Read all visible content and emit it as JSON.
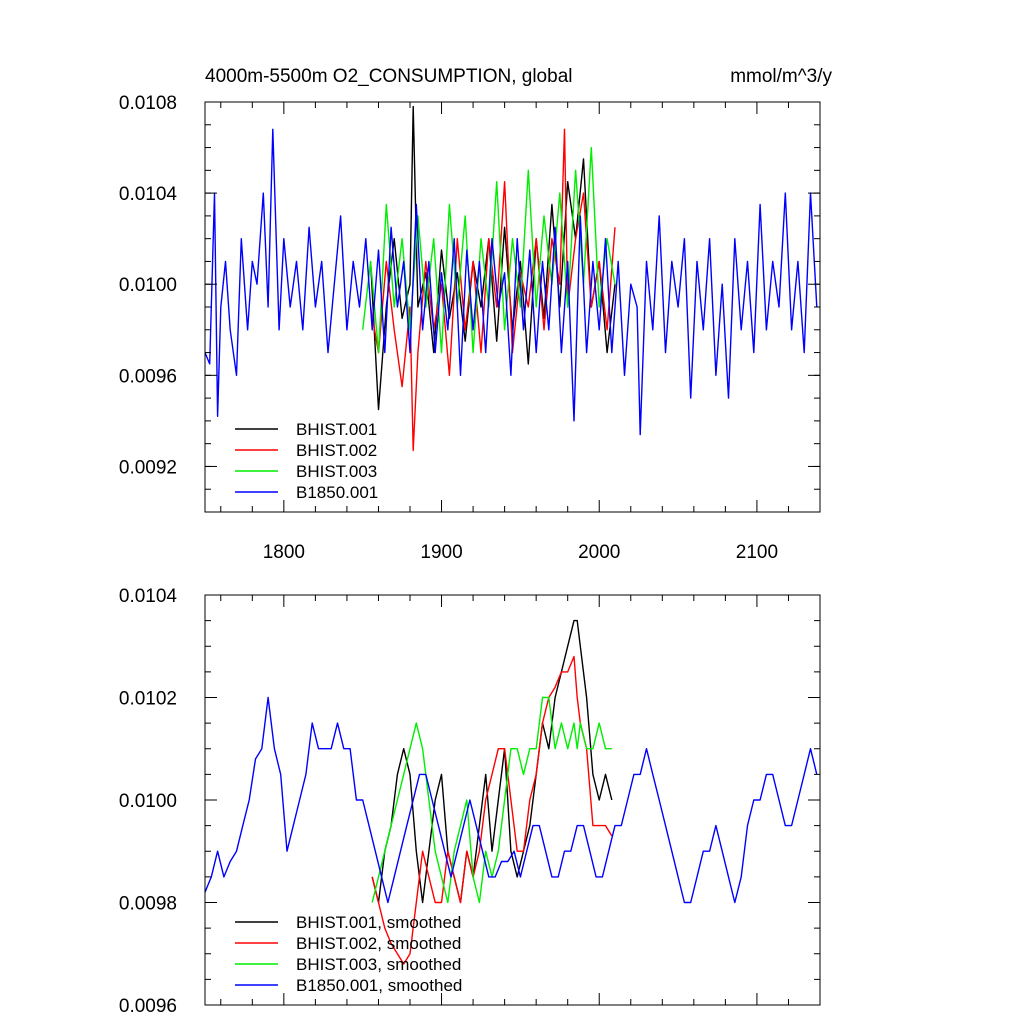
{
  "chart_data": [
    {
      "type": "line",
      "title": "4000m-5500m O2_CONSUMPTION, global",
      "units": "mmol/m^3/y",
      "xlim": [
        1750,
        2140
      ],
      "ylim": [
        0.009,
        0.0108
      ],
      "x_ticks": [
        {
          "value": 1800,
          "label": "1800"
        },
        {
          "value": 1900,
          "label": "1900"
        },
        {
          "value": 2000,
          "label": "2000"
        },
        {
          "value": 2100,
          "label": "2100"
        }
      ],
      "y_ticks": [
        {
          "value": 0.0092,
          "label": "0.0092"
        },
        {
          "value": 0.0096,
          "label": "0.0096"
        },
        {
          "value": 0.01,
          "label": "0.0100"
        },
        {
          "value": 0.0104,
          "label": "0.0104"
        },
        {
          "value": 0.0108,
          "label": "0.0108"
        }
      ],
      "legend_position": "bottom-left",
      "series": [
        {
          "name": "BHIST.001",
          "color": "#000000",
          "x": [
            1855,
            1860,
            1865,
            1870,
            1875,
            1880,
            1882,
            1885,
            1890,
            1895,
            1900,
            1905,
            1910,
            1915,
            1920,
            1925,
            1930,
            1935,
            1940,
            1945,
            1950,
            1955,
            1960,
            1965,
            1970,
            1975,
            1980,
            1985,
            1990,
            1995,
            2000,
            2005,
            2010
          ],
          "y": [
            0.0101,
            0.00945,
            0.0099,
            0.0102,
            0.00985,
            0.01,
            0.01078,
            0.0099,
            0.01005,
            0.0097,
            0.01015,
            0.00985,
            0.01005,
            0.00975,
            0.0101,
            0.0099,
            0.0102,
            0.00975,
            0.01025,
            0.0098,
            0.0101,
            0.00965,
            0.0102,
            0.00985,
            0.01035,
            0.0099,
            0.01045,
            0.0102,
            0.01055,
            0.0099,
            0.0101,
            0.0097,
            0.01
          ]
        },
        {
          "name": "BHIST.002",
          "color": "#ff0000",
          "x": [
            1855,
            1860,
            1865,
            1870,
            1875,
            1880,
            1882,
            1885,
            1890,
            1895,
            1900,
            1905,
            1910,
            1915,
            1920,
            1925,
            1930,
            1935,
            1940,
            1945,
            1950,
            1955,
            1960,
            1965,
            1970,
            1975,
            1978,
            1980,
            1985,
            1990,
            1995,
            2000,
            2005,
            2010
          ],
          "y": [
            0.0099,
            0.0097,
            0.0101,
            0.0098,
            0.00955,
            0.0099,
            0.00927,
            0.0097,
            0.0101,
            0.0098,
            0.01,
            0.0096,
            0.0102,
            0.0098,
            0.0101,
            0.0097,
            0.0102,
            0.0099,
            0.01045,
            0.0097,
            0.01005,
            0.0099,
            0.0102,
            0.0098,
            0.0102,
            0.01,
            0.01068,
            0.0099,
            0.0102,
            0.0104,
            0.0099,
            0.0101,
            0.0098,
            0.01025
          ]
        },
        {
          "name": "BHIST.003",
          "color": "#00ee00",
          "x": [
            1850,
            1855,
            1860,
            1865,
            1870,
            1875,
            1880,
            1885,
            1890,
            1895,
            1900,
            1905,
            1910,
            1915,
            1920,
            1925,
            1930,
            1935,
            1940,
            1945,
            1950,
            1955,
            1960,
            1965,
            1970,
            1975,
            1980,
            1985,
            1990,
            1995,
            2000,
            2005,
            2010
          ],
          "y": [
            0.0098,
            0.0101,
            0.0097,
            0.01035,
            0.0099,
            0.0102,
            0.0098,
            0.0103,
            0.0099,
            0.0102,
            0.0097,
            0.01035,
            0.0099,
            0.0103,
            0.0097,
            0.0102,
            0.0099,
            0.01045,
            0.0098,
            0.0102,
            0.0099,
            0.0105,
            0.0099,
            0.0103,
            0.01,
            0.0104,
            0.0099,
            0.0105,
            0.01,
            0.0106,
            0.0099,
            0.0102,
            0.01
          ]
        },
        {
          "name": "B1850.001",
          "color": "#0000ff",
          "x": [
            1750,
            1753,
            1756,
            1758,
            1760,
            1763,
            1766,
            1770,
            1773,
            1777,
            1780,
            1783,
            1787,
            1790,
            1793,
            1797,
            1800,
            1804,
            1808,
            1812,
            1816,
            1820,
            1824,
            1828,
            1832,
            1836,
            1840,
            1844,
            1848,
            1852,
            1856,
            1860,
            1864,
            1868,
            1872,
            1876,
            1880,
            1884,
            1888,
            1892,
            1896,
            1900,
            1904,
            1908,
            1912,
            1916,
            1920,
            1924,
            1928,
            1932,
            1936,
            1940,
            1944,
            1948,
            1952,
            1956,
            1960,
            1964,
            1968,
            1972,
            1976,
            1980,
            1984,
            1988,
            1992,
            1996,
            2000,
            2004,
            2008,
            2012,
            2016,
            2020,
            2024,
            2026,
            2030,
            2034,
            2038,
            2042,
            2046,
            2050,
            2054,
            2058,
            2062,
            2066,
            2070,
            2074,
            2078,
            2082,
            2086,
            2090,
            2094,
            2098,
            2102,
            2106,
            2110,
            2114,
            2118,
            2122,
            2126,
            2130,
            2134,
            2138
          ],
          "y": [
            0.0097,
            0.00965,
            0.0104,
            0.00942,
            0.0099,
            0.0101,
            0.0098,
            0.0096,
            0.0102,
            0.0098,
            0.0101,
            0.01,
            0.0104,
            0.0099,
            0.01068,
            0.0098,
            0.0102,
            0.0099,
            0.0101,
            0.0098,
            0.01025,
            0.0099,
            0.0101,
            0.0097,
            0.01,
            0.0103,
            0.0098,
            0.0101,
            0.0099,
            0.0102,
            0.0098,
            0.01015,
            0.0097,
            0.01025,
            0.0099,
            0.0101,
            0.0097,
            0.01035,
            0.0098,
            0.0101,
            0.0097,
            0.01005,
            0.0098,
            0.0102,
            0.0096,
            0.01015,
            0.0098,
            0.0101,
            0.0097,
            0.0102,
            0.0099,
            0.01005,
            0.0096,
            0.0102,
            0.0098,
            0.01015,
            0.0097,
            0.0101,
            0.0098,
            0.01025,
            0.0097,
            0.0101,
            0.0094,
            0.0103,
            0.0097,
            0.0101,
            0.0098,
            0.0102,
            0.0097,
            0.0101,
            0.0096,
            0.01,
            0.0099,
            0.00934,
            0.0101,
            0.0098,
            0.0103,
            0.0097,
            0.0101,
            0.0099,
            0.0102,
            0.0095,
            0.0101,
            0.0098,
            0.0102,
            0.0096,
            0.01,
            0.0095,
            0.0102,
            0.0098,
            0.0101,
            0.0097,
            0.01035,
            0.0098,
            0.0101,
            0.0099,
            0.0104,
            0.0098,
            0.0101,
            0.0097,
            0.0104,
            0.0099
          ]
        }
      ]
    },
    {
      "type": "line",
      "title": "",
      "xlim": [
        1750,
        2140
      ],
      "ylim": [
        0.0096,
        0.0104
      ],
      "x_ticks": [
        {
          "value": 1800,
          "label": ""
        },
        {
          "value": 1900,
          "label": ""
        },
        {
          "value": 2000,
          "label": ""
        },
        {
          "value": 2100,
          "label": ""
        }
      ],
      "y_ticks": [
        {
          "value": 0.0096,
          "label": "0.0096"
        },
        {
          "value": 0.0098,
          "label": "0.0098"
        },
        {
          "value": 0.01,
          "label": "0.0100"
        },
        {
          "value": 0.0102,
          "label": "0.0102"
        },
        {
          "value": 0.0104,
          "label": "0.0104"
        }
      ],
      "legend_position": "bottom-left",
      "series": [
        {
          "name": "BHIST.001, smoothed",
          "color": "#000000",
          "x": [
            1856,
            1860,
            1864,
            1868,
            1872,
            1876,
            1880,
            1884,
            1888,
            1892,
            1896,
            1900,
            1904,
            1908,
            1912,
            1916,
            1920,
            1924,
            1928,
            1932,
            1936,
            1940,
            1944,
            1948,
            1952,
            1956,
            1960,
            1964,
            1968,
            1972,
            1976,
            1980,
            1984,
            1986,
            1988,
            1992,
            1996,
            2000,
            2004,
            2008
          ],
          "y": [
            0.00985,
            0.0098,
            0.0099,
            0.00995,
            0.01005,
            0.0101,
            0.01005,
            0.0099,
            0.0098,
            0.0099,
            0.01,
            0.01005,
            0.0099,
            0.00985,
            0.0098,
            0.0099,
            0.00985,
            0.00995,
            0.01005,
            0.0099,
            0.01,
            0.0101,
            0.0099,
            0.00985,
            0.0099,
            0.00995,
            0.01005,
            0.01015,
            0.0101,
            0.0102,
            0.01025,
            0.0103,
            0.01035,
            0.01035,
            0.0103,
            0.0102,
            0.01005,
            0.01,
            0.01005,
            0.01
          ]
        },
        {
          "name": "BHIST.002, smoothed",
          "color": "#ff0000",
          "x": [
            1856,
            1860,
            1864,
            1868,
            1872,
            1876,
            1880,
            1884,
            1888,
            1892,
            1896,
            1900,
            1904,
            1908,
            1912,
            1916,
            1920,
            1924,
            1928,
            1932,
            1936,
            1940,
            1944,
            1948,
            1952,
            1956,
            1960,
            1964,
            1968,
            1972,
            1976,
            1980,
            1984,
            1986,
            1988,
            1992,
            1996,
            2000,
            2004,
            2008
          ],
          "y": [
            0.00985,
            0.0098,
            0.00975,
            0.00972,
            0.0097,
            0.00968,
            0.0097,
            0.0098,
            0.0099,
            0.00985,
            0.0098,
            0.0098,
            0.0099,
            0.00985,
            0.0098,
            0.0099,
            0.00985,
            0.0099,
            0.01,
            0.01005,
            0.0101,
            0.0101,
            0.01,
            0.0099,
            0.0099,
            0.01,
            0.01005,
            0.01015,
            0.0102,
            0.01022,
            0.01025,
            0.01025,
            0.01028,
            0.0102,
            0.01015,
            0.0101,
            0.00995,
            0.00995,
            0.00995,
            0.00993
          ]
        },
        {
          "name": "BHIST.003, smoothed",
          "color": "#00ee00",
          "x": [
            1856,
            1860,
            1864,
            1868,
            1872,
            1876,
            1880,
            1884,
            1888,
            1892,
            1896,
            1900,
            1904,
            1908,
            1912,
            1916,
            1920,
            1924,
            1928,
            1932,
            1936,
            1940,
            1944,
            1948,
            1952,
            1956,
            1960,
            1964,
            1968,
            1972,
            1976,
            1980,
            1984,
            1986,
            1988,
            1992,
            1996,
            2000,
            2004,
            2008
          ],
          "y": [
            0.0098,
            0.00985,
            0.0099,
            0.00995,
            0.01,
            0.01005,
            0.0101,
            0.01015,
            0.0101,
            0.01,
            0.0099,
            0.00985,
            0.0098,
            0.0099,
            0.00995,
            0.01,
            0.00985,
            0.0098,
            0.0099,
            0.00985,
            0.0099,
            0.01,
            0.0101,
            0.0101,
            0.01005,
            0.0101,
            0.0101,
            0.0102,
            0.0102,
            0.0101,
            0.01015,
            0.0101,
            0.01015,
            0.0101,
            0.01015,
            0.0101,
            0.0101,
            0.01015,
            0.0101,
            0.0101
          ]
        },
        {
          "name": "B1850.001, smoothed",
          "color": "#0000ff",
          "x": [
            1750,
            1754,
            1758,
            1762,
            1766,
            1770,
            1774,
            1778,
            1782,
            1786,
            1790,
            1794,
            1798,
            1802,
            1806,
            1810,
            1814,
            1818,
            1822,
            1826,
            1830,
            1834,
            1838,
            1842,
            1846,
            1850,
            1854,
            1858,
            1862,
            1866,
            1870,
            1874,
            1878,
            1882,
            1886,
            1890,
            1894,
            1898,
            1902,
            1906,
            1910,
            1914,
            1918,
            1922,
            1926,
            1930,
            1934,
            1938,
            1942,
            1946,
            1950,
            1954,
            1958,
            1962,
            1966,
            1970,
            1974,
            1978,
            1982,
            1986,
            1990,
            1994,
            1998,
            2002,
            2006,
            2010,
            2014,
            2018,
            2022,
            2026,
            2030,
            2034,
            2038,
            2042,
            2046,
            2050,
            2054,
            2058,
            2062,
            2066,
            2070,
            2074,
            2078,
            2082,
            2086,
            2090,
            2094,
            2098,
            2102,
            2106,
            2110,
            2114,
            2118,
            2122,
            2126,
            2130,
            2134,
            2138
          ],
          "y": [
            0.00982,
            0.00985,
            0.0099,
            0.00985,
            0.00988,
            0.0099,
            0.00995,
            0.01,
            0.01008,
            0.0101,
            0.0102,
            0.0101,
            0.01005,
            0.0099,
            0.00995,
            0.01,
            0.01005,
            0.01015,
            0.0101,
            0.0101,
            0.0101,
            0.01015,
            0.0101,
            0.0101,
            0.01,
            0.01,
            0.00995,
            0.0099,
            0.00985,
            0.0098,
            0.00985,
            0.0099,
            0.00995,
            0.01,
            0.01005,
            0.01005,
            0.01,
            0.00995,
            0.0099,
            0.00985,
            0.0099,
            0.00995,
            0.01,
            0.00995,
            0.0099,
            0.00985,
            0.00985,
            0.00988,
            0.00988,
            0.0099,
            0.00985,
            0.0099,
            0.00995,
            0.00995,
            0.0099,
            0.00985,
            0.00985,
            0.0099,
            0.0099,
            0.00995,
            0.00995,
            0.0099,
            0.00985,
            0.00985,
            0.0099,
            0.00995,
            0.00995,
            0.01,
            0.01005,
            0.01005,
            0.0101,
            0.01005,
            0.01,
            0.00995,
            0.0099,
            0.00985,
            0.0098,
            0.0098,
            0.00985,
            0.0099,
            0.0099,
            0.00995,
            0.0099,
            0.00985,
            0.0098,
            0.00985,
            0.00995,
            0.01,
            0.01,
            0.01005,
            0.01005,
            0.01,
            0.00995,
            0.00995,
            0.01,
            0.01005,
            0.0101,
            0.01005
          ]
        }
      ]
    }
  ]
}
